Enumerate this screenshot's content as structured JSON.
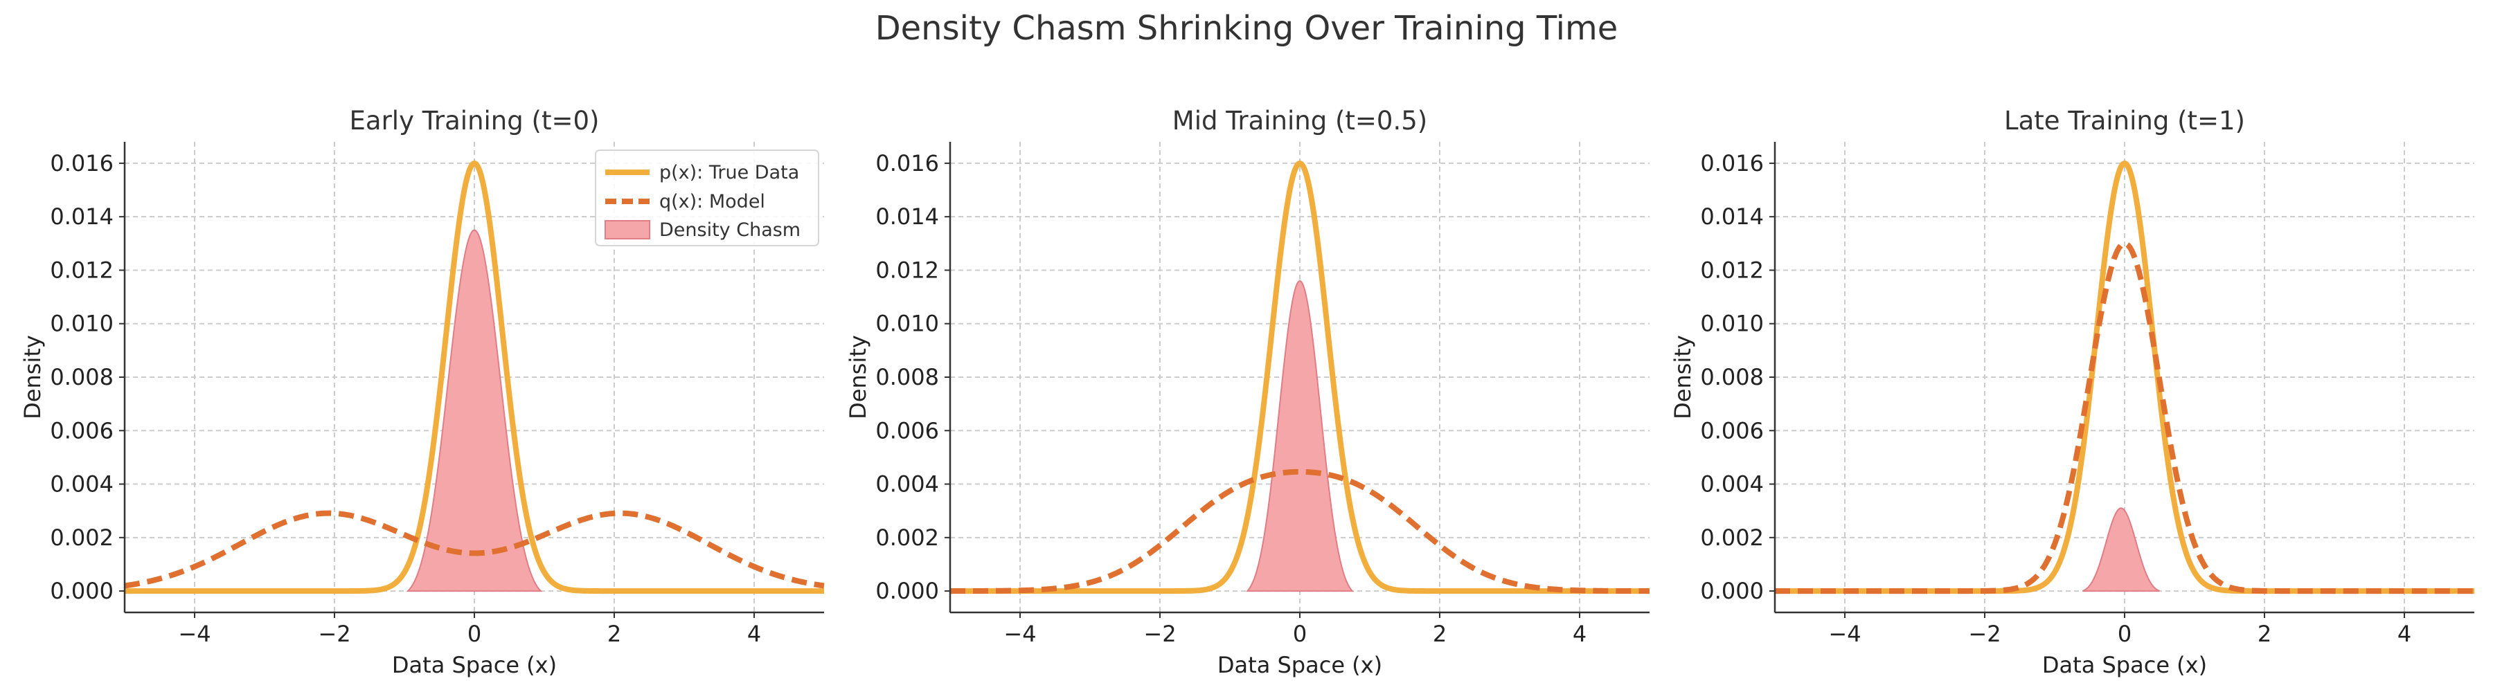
{
  "figure": {
    "title": "Density Chasm Shrinking Over Training Time"
  },
  "legend": {
    "location": "upper right",
    "entries": [
      "p(x): True Data",
      "q(x): Model",
      "Density Chasm"
    ]
  },
  "colors": {
    "true_data": "#f2ae3d",
    "model": "#e0702f",
    "chasm_fill": "#f4a6a8",
    "chasm_edge": "#e07d85",
    "grid": "#cccccc",
    "axis": "#333333"
  },
  "chart_data": [
    {
      "type": "line",
      "title": "Early Training (t=0)",
      "xlabel": "Data Space (x)",
      "ylabel": "Density",
      "xlim": [
        -5,
        5
      ],
      "ylim": [
        -0.0008,
        0.0168
      ],
      "xticks": [
        "−4",
        "−2",
        "0",
        "2",
        "4"
      ],
      "yticks": [
        "0.000",
        "0.002",
        "0.004",
        "0.006",
        "0.008",
        "0.010",
        "0.012",
        "0.014",
        "0.016"
      ],
      "grid": true,
      "series": [
        {
          "name": "p(x): True Data",
          "kind": "gaussian",
          "amplitude": 0.016,
          "mean": 0,
          "sigma": 0.4,
          "style": "solid"
        },
        {
          "name": "q(x): Model",
          "kind": "bimodal",
          "amplitude": 0.0029,
          "means": [
            -2.1,
            2.1
          ],
          "sigma": 1.25,
          "style": "dashed"
        }
      ],
      "chasm": {
        "name": "Density Chasm",
        "peak": 0.0135,
        "x_range": [
          -0.95,
          0.95
        ]
      },
      "show_legend": true
    },
    {
      "type": "line",
      "title": "Mid Training (t=0.5)",
      "xlabel": "Data Space (x)",
      "ylabel": "Density",
      "xlim": [
        -5,
        5
      ],
      "ylim": [
        -0.0008,
        0.0168
      ],
      "xticks": [
        "−4",
        "−2",
        "0",
        "2",
        "4"
      ],
      "yticks": [
        "0.000",
        "0.002",
        "0.004",
        "0.006",
        "0.008",
        "0.010",
        "0.012",
        "0.014",
        "0.016"
      ],
      "grid": true,
      "series": [
        {
          "name": "p(x): True Data",
          "kind": "gaussian",
          "amplitude": 0.016,
          "mean": 0,
          "sigma": 0.4,
          "style": "solid"
        },
        {
          "name": "q(x): Model",
          "kind": "bimodal",
          "amplitude": 0.0032,
          "means": [
            -0.85,
            0.85
          ],
          "sigma": 1.0,
          "style": "dashed"
        }
      ],
      "chasm": {
        "name": "Density Chasm",
        "peak": 0.0116,
        "x_range": [
          -0.75,
          0.75
        ]
      },
      "show_legend": false
    },
    {
      "type": "line",
      "title": "Late Training (t=1)",
      "xlabel": "Data Space (x)",
      "ylabel": "Density",
      "xlim": [
        -5,
        5
      ],
      "ylim": [
        -0.0008,
        0.0168
      ],
      "xticks": [
        "−4",
        "−2",
        "0",
        "2",
        "4"
      ],
      "yticks": [
        "0.000",
        "0.002",
        "0.004",
        "0.006",
        "0.008",
        "0.010",
        "0.012",
        "0.014",
        "0.016"
      ],
      "grid": true,
      "series": [
        {
          "name": "p(x): True Data",
          "kind": "gaussian",
          "amplitude": 0.016,
          "mean": 0,
          "sigma": 0.4,
          "style": "solid"
        },
        {
          "name": "q(x): Model",
          "kind": "gaussian",
          "amplitude": 0.013,
          "mean": 0,
          "sigma": 0.5,
          "style": "dashed"
        }
      ],
      "chasm": {
        "name": "Density Chasm",
        "peak": 0.0031,
        "x_range": [
          -0.6,
          0.5
        ]
      },
      "show_legend": false
    }
  ]
}
